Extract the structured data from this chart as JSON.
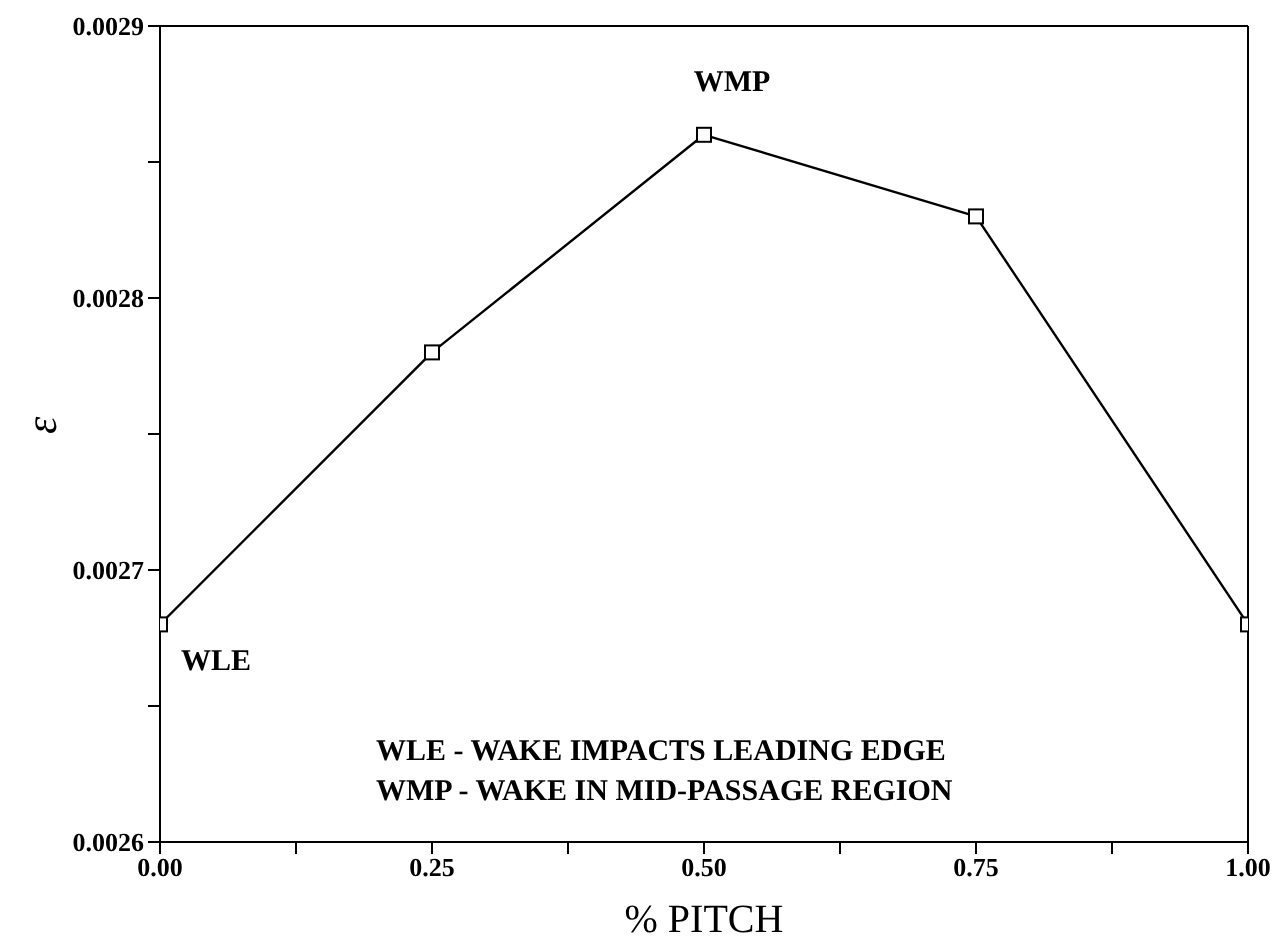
{
  "chart_data": {
    "type": "line",
    "xlabel": "% PITCH",
    "ylabel": "ε",
    "x": [
      0,
      0.25,
      0.5,
      0.75,
      1.0
    ],
    "series": [
      {
        "color": "#000000",
        "values": [
          0.00268,
          0.00278,
          0.00286,
          0.00283,
          0.00268
        ]
      }
    ],
    "xlim": [
      0,
      1
    ],
    "xticks": [
      {
        "value": 0,
        "label": "0.00"
      },
      {
        "value": 0.125,
        "label": null
      },
      {
        "value": 0.25,
        "label": "0.25"
      },
      {
        "value": 0.375,
        "label": null
      },
      {
        "value": 0.5,
        "label": "0.50"
      },
      {
        "value": 0.625,
        "label": null
      },
      {
        "value": 0.75,
        "label": "0.75"
      },
      {
        "value": 0.875,
        "label": null
      },
      {
        "value": 1,
        "label": "1.00"
      }
    ],
    "ylim": [
      0.0026,
      0.0029
    ],
    "yticks": [
      0.0026,
      {
        "value": 0.00265,
        "label": null
      },
      0.0027,
      {
        "value": 0.00275,
        "label": null
      },
      0.0028,
      {
        "value": 0.00285,
        "label": null
      },
      0.0029
    ],
    "marker": "square",
    "line_style": "solid",
    "grid": false,
    "legend": false,
    "annotations": [
      {
        "text": "WMP",
        "x": 0.5,
        "y": 0.00286
      },
      {
        "text": "WLE",
        "x": 0,
        "y": 0.00268
      },
      "WLE - WAKE IMPACTS LEADING EDGE",
      "WMP - WAKE IN MID-PASSAGE REGION"
    ]
  }
}
